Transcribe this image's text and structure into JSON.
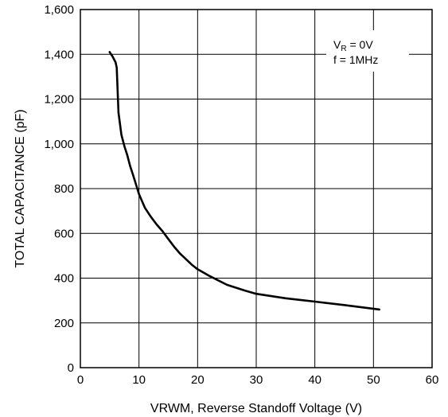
{
  "chart_data": {
    "type": "line",
    "xlabel": "VRWM, Reverse Standoff Voltage (V)",
    "ylabel": "TOTAL CAPACITANCE (pF)",
    "xlim": [
      0,
      60
    ],
    "ylim": [
      0,
      1600
    ],
    "x_ticks": [
      "0",
      "10",
      "20",
      "30",
      "40",
      "50",
      "60"
    ],
    "y_ticks": [
      "0",
      "200",
      "400",
      "600",
      "800",
      "1,000",
      "1,200",
      "1,400",
      "1,600"
    ],
    "grid": true,
    "annotation": {
      "line1_main": "V",
      "line1_sub": "R",
      "line1_rest": " = 0V",
      "line2": "f = 1MHz"
    },
    "series": [
      {
        "x": [
          5.0,
          5.5,
          6.0,
          6.2,
          6.5,
          7.0,
          7.5,
          8.0,
          8.5,
          9.0,
          10.0,
          11.0,
          12.0,
          13.0,
          14.0,
          15.0,
          16.0,
          17.0,
          18.0,
          19.0,
          20.0,
          22.0,
          25.0,
          28.0,
          30.0,
          35.0,
          40.0,
          45.0,
          51.0
        ],
        "y": [
          1410,
          1390,
          1365,
          1340,
          1140,
          1040,
          990,
          950,
          900,
          860,
          775,
          715,
          675,
          640,
          610,
          575,
          540,
          510,
          485,
          460,
          440,
          410,
          370,
          345,
          330,
          310,
          295,
          280,
          260
        ]
      }
    ]
  }
}
